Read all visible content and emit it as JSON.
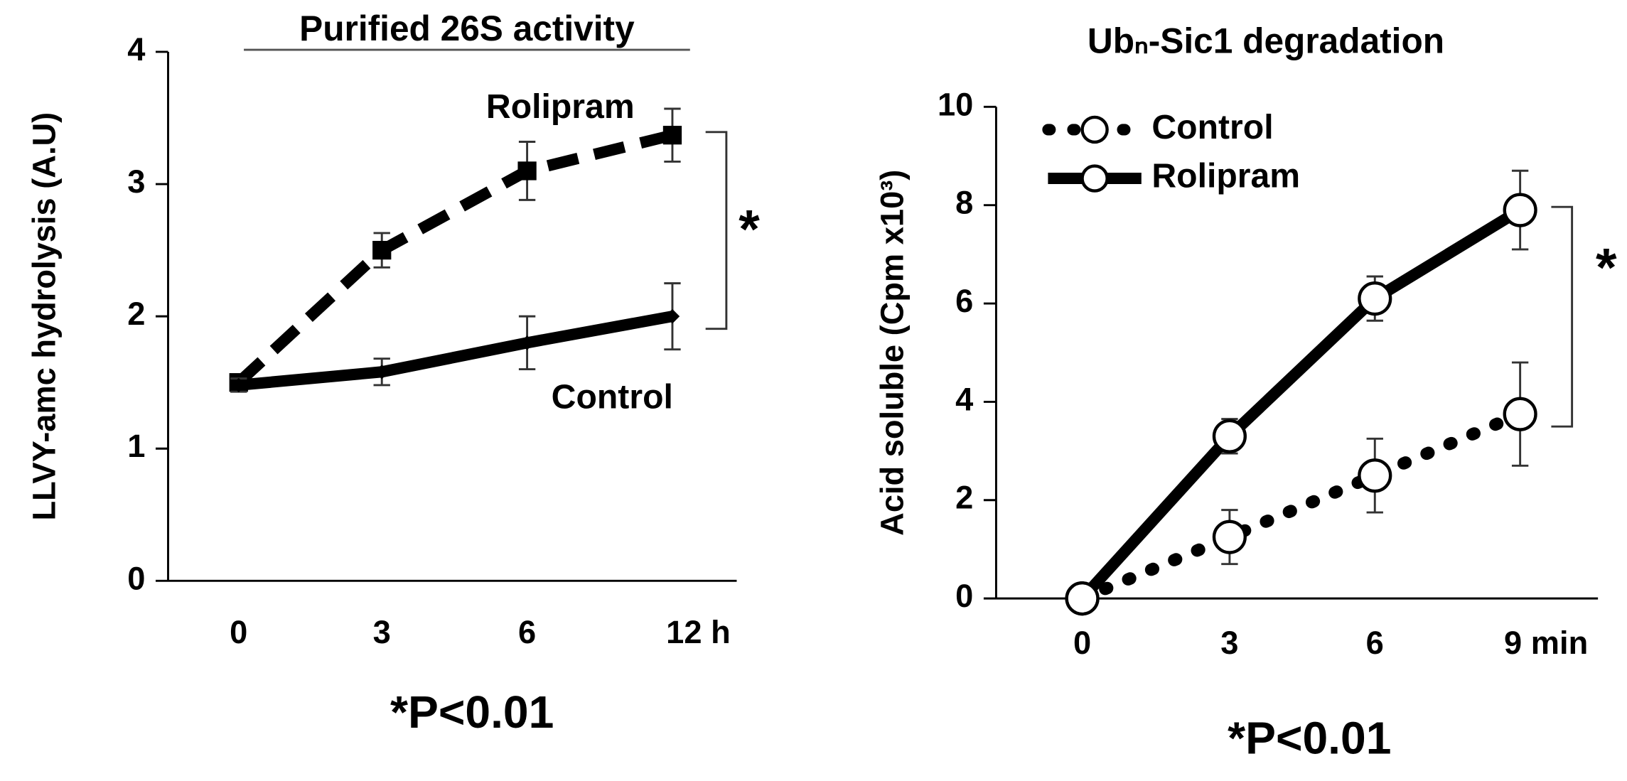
{
  "chart_data": [
    {
      "type": "line",
      "title": "Purified 26S activity",
      "ylabel": "LLVY-amc hydrolysis (A.U)",
      "categories": [
        "0",
        "3",
        "6",
        "12 h"
      ],
      "series": [
        {
          "name": "Rolipram",
          "color": "#000000",
          "line_style": "dashed",
          "marker": "square",
          "values": [
            1.5,
            2.5,
            3.1,
            3.37
          ],
          "errors": [
            0.05,
            0.13,
            0.22,
            0.2
          ]
        },
        {
          "name": "Control",
          "color": "#000000",
          "line_style": "solid",
          "marker": "diamond",
          "values": [
            1.48,
            1.58,
            1.8,
            2.0
          ],
          "errors": [
            0.05,
            0.1,
            0.2,
            0.25
          ]
        }
      ],
      "ylim": [
        0,
        4
      ],
      "yticks": [
        0,
        1,
        2,
        3,
        4
      ],
      "significance": "*",
      "note": "*P<0.01"
    },
    {
      "type": "line",
      "title": "Ubₙ-Sic1 degradation",
      "ylabel": "Acid soluble (Cpm x10³)",
      "categories": [
        "0",
        "3",
        "6",
        "9 min"
      ],
      "series": [
        {
          "name": "Control",
          "color": "#000000",
          "line_style": "dotted",
          "marker": "circle",
          "values": [
            0,
            1.25,
            2.5,
            3.75
          ],
          "errors": [
            0.1,
            0.55,
            0.75,
            1.05
          ]
        },
        {
          "name": "Rolipram",
          "color": "#000000",
          "line_style": "solid",
          "marker": "circle",
          "values": [
            0,
            3.3,
            6.1,
            7.9
          ],
          "errors": [
            0.1,
            0.35,
            0.45,
            0.8
          ]
        }
      ],
      "ylim": [
        0,
        10
      ],
      "yticks": [
        0,
        2,
        4,
        6,
        8,
        10
      ],
      "legend": "upper left",
      "significance": "*",
      "note": "*P<0.01"
    }
  ]
}
